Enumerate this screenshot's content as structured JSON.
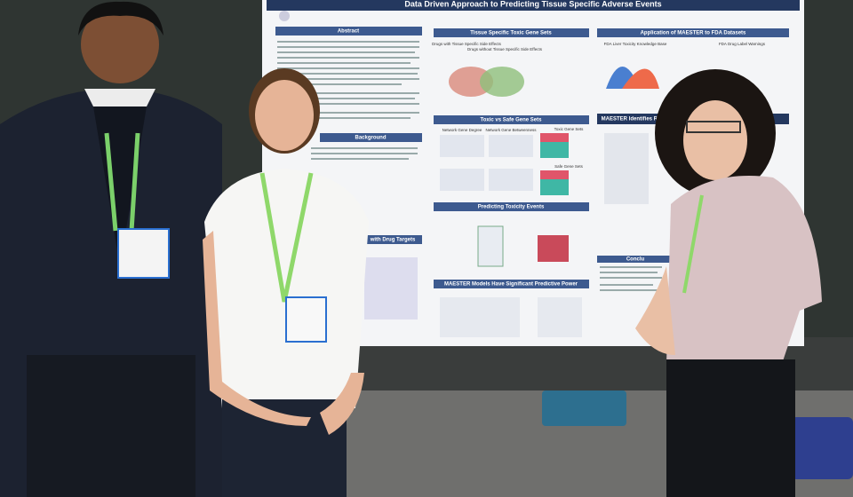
{
  "poster": {
    "title": "Data Driven Approach to Predicting Tissue Specific Adverse Events",
    "sections": {
      "abstract": "Abstract",
      "background": "Background",
      "drug_targets": "with Drug Targets",
      "toxic_gene_sets": "Tissue Specific Toxic Gene Sets",
      "toxic_vs_safe": "Toxic vs Safe Gene Sets",
      "predicting": "Predicting Toxicity Events",
      "predictive_power": "MAESTER Models Have Significant Predictive Power",
      "application": "Application of MAESTER to FDA Datasets",
      "features": "MAESTER Identifies Re",
      "conclusions": "Conclu"
    },
    "labels": {
      "drugs_with": "Drugs with Tissue Specific Side Effects",
      "drugs_without": "Drugs without Tissue Specific Side Effects",
      "liver_kb": "FDA Liver Toxicity Knowledge Base",
      "label_warnings": "FDA Drug Label Warnings",
      "degree": "Network Gene Degree",
      "betweenness": "Network Gene Betweenness",
      "toxic_sets": "Toxic Gene Sets",
      "safe_sets": "Safe Gene Sets"
    }
  }
}
